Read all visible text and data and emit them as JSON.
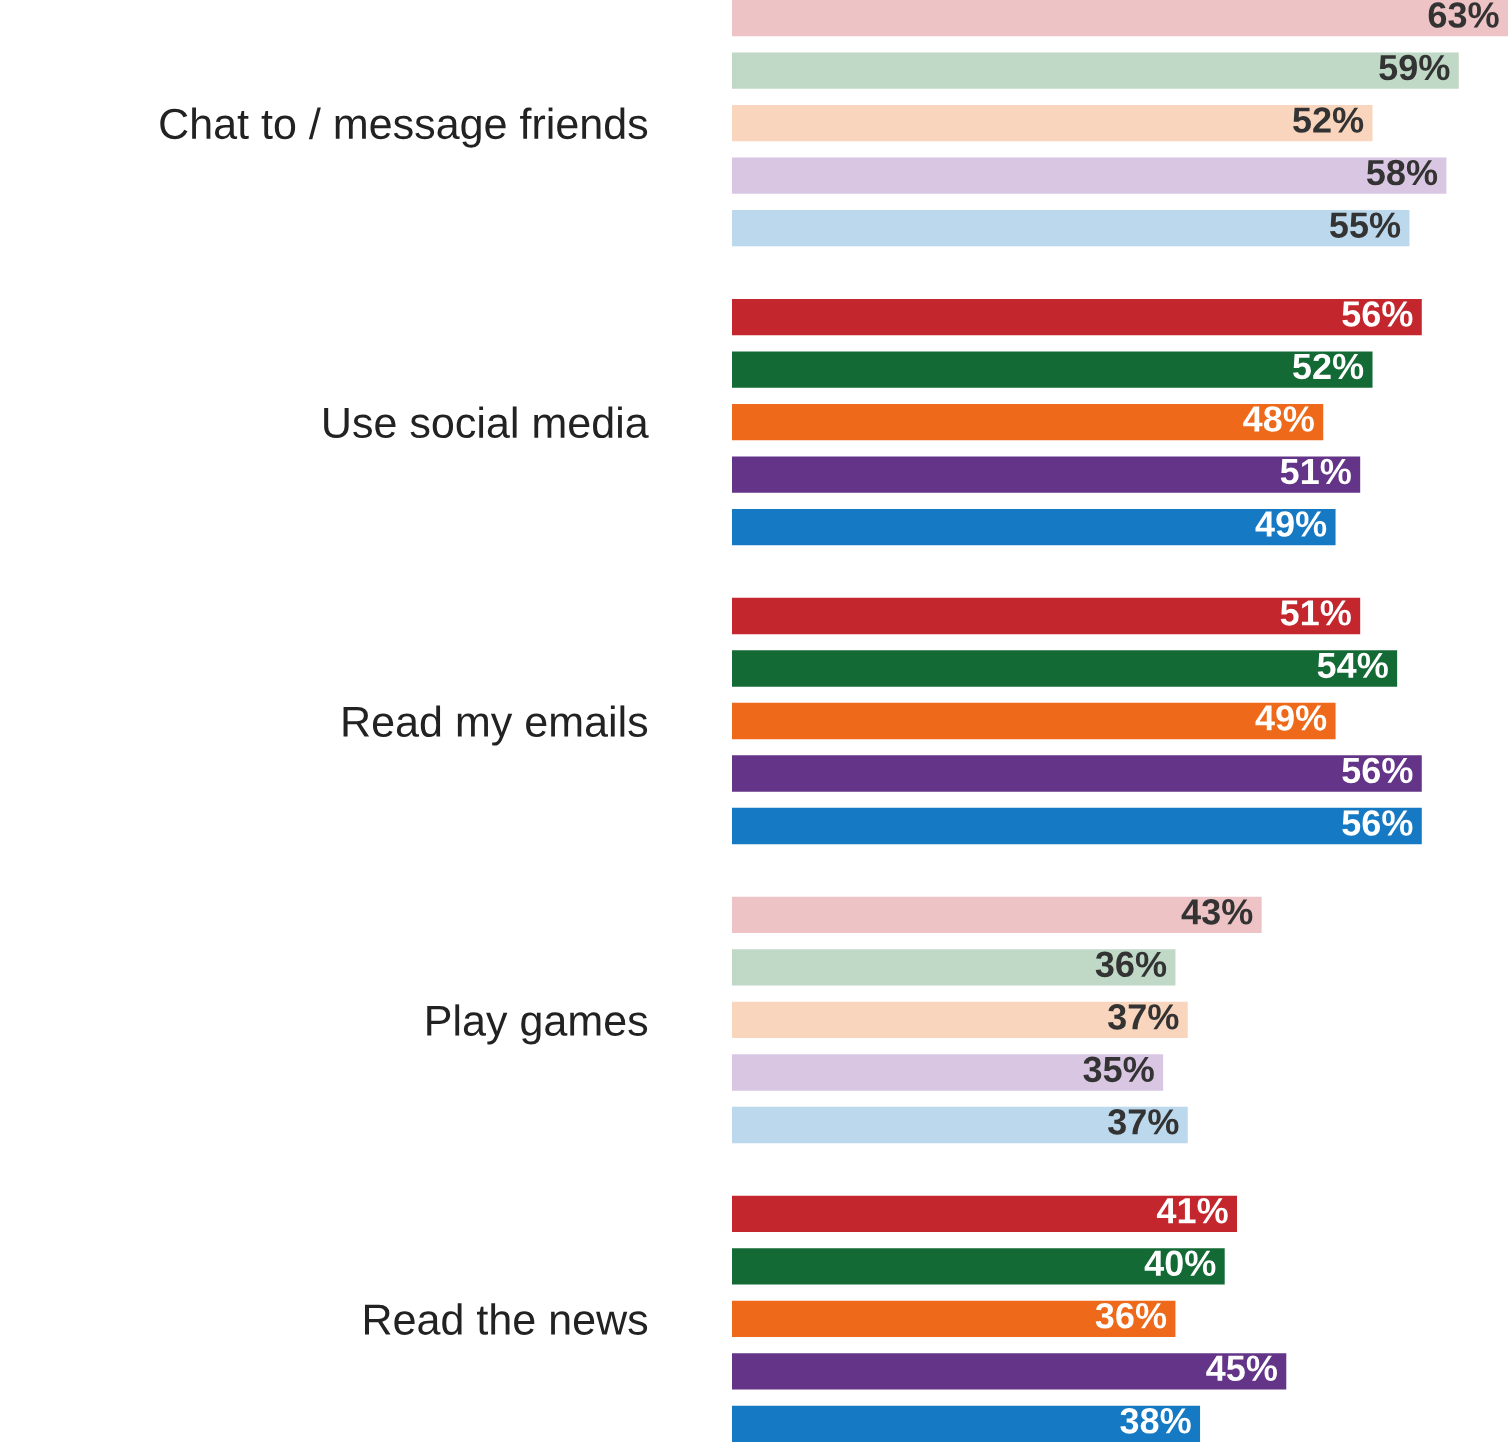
{
  "chart_data": {
    "type": "bar",
    "orientation": "horizontal",
    "categories": [
      "Chat to / message friends",
      "Use social media",
      "Read my emails",
      "Play games",
      "Read the news"
    ],
    "series": [
      {
        "colors": [
          "#edc3c5",
          "#c4262e",
          "#c4262e",
          "#edc3c5",
          "#c4262e"
        ],
        "values": [
          63,
          56,
          51,
          43,
          41
        ],
        "value_labels": [
          "63%",
          "56%",
          "51%",
          "43%",
          "41%"
        ]
      },
      {
        "colors": [
          "#c0d8c6",
          "#136a35",
          "#136a35",
          "#c0d8c6",
          "#136a35"
        ],
        "values": [
          59,
          52,
          54,
          36,
          40
        ],
        "value_labels": [
          "59%",
          "52%",
          "54%",
          "36%",
          "40%"
        ]
      },
      {
        "colors": [
          "#f9d5bd",
          "#ee6a1a",
          "#ee6a1a",
          "#f9d5bd",
          "#ee6a1a"
        ],
        "values": [
          52,
          48,
          49,
          37,
          36
        ],
        "value_labels": [
          "52%",
          "48%",
          "49%",
          "37%",
          "36%"
        ]
      },
      {
        "colors": [
          "#d8c6e2",
          "#643489",
          "#643489",
          "#d8c6e2",
          "#643489"
        ],
        "values": [
          58,
          51,
          56,
          35,
          45
        ],
        "value_labels": [
          "58%",
          "51%",
          "56%",
          "35%",
          "45%"
        ]
      },
      {
        "colors": [
          "#bcd8ec",
          "#1679c3",
          "#1679c3",
          "#bcd8ec",
          "#1679c3"
        ],
        "values": [
          55,
          49,
          56,
          37,
          38
        ],
        "value_labels": [
          "55%",
          "49%",
          "56%",
          "37%",
          "38%"
        ]
      }
    ],
    "xlim": [
      0,
      63
    ],
    "tick_labels": "y",
    "grid": false
  }
}
